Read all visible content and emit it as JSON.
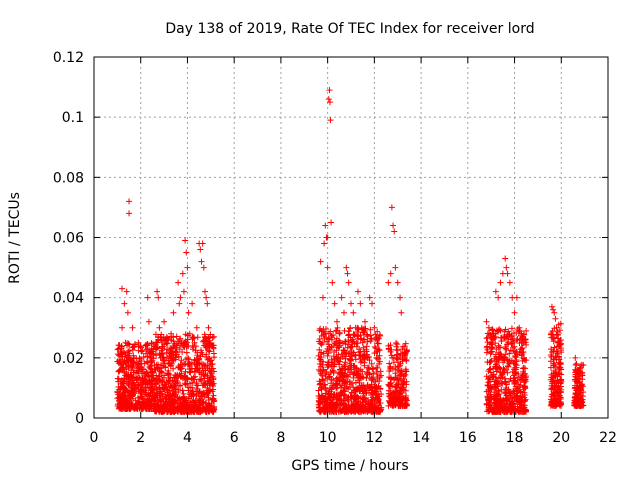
{
  "chart_data": {
    "type": "scatter",
    "title": "Day 138 of 2019, Rate Of TEC Index for receiver lord",
    "xlabel": "GPS time / hours",
    "ylabel": "ROTI / TECUs",
    "xlim": [
      0,
      22
    ],
    "ylim": [
      0,
      0.12
    ],
    "xticks": [
      0,
      2,
      4,
      6,
      8,
      10,
      12,
      14,
      16,
      18,
      20,
      22
    ],
    "xtick_labels": [
      "0",
      "2",
      "4",
      "6",
      "8",
      "10",
      "12",
      "14",
      "16",
      "18",
      "20",
      "22"
    ],
    "yticks": [
      0,
      0.02,
      0.04,
      0.06,
      0.08,
      0.1,
      0.12
    ],
    "ytick_labels": [
      "0",
      "0.02",
      "0.04",
      "0.06",
      "0.08",
      "0.1",
      "0.12"
    ],
    "grid": true,
    "marker": "+",
    "color": "#ff0000",
    "series": [
      {
        "name": "ROTI",
        "points": [
          [
            1.1,
            0.008
          ],
          [
            1.15,
            0.012
          ],
          [
            1.2,
            0.03
          ],
          [
            1.2,
            0.043
          ],
          [
            1.25,
            0.022
          ],
          [
            1.3,
            0.038
          ],
          [
            1.3,
            0.015
          ],
          [
            1.35,
            0.025
          ],
          [
            1.4,
            0.042
          ],
          [
            1.4,
            0.018
          ],
          [
            1.45,
            0.035
          ],
          [
            1.5,
            0.072
          ],
          [
            1.5,
            0.068
          ],
          [
            1.5,
            0.02
          ],
          [
            1.55,
            0.012
          ],
          [
            1.6,
            0.01
          ],
          [
            1.65,
            0.03
          ],
          [
            1.7,
            0.02
          ],
          [
            1.8,
            0.015
          ],
          [
            1.9,
            0.025
          ],
          [
            2.0,
            0.018
          ],
          [
            2.1,
            0.012
          ],
          [
            2.2,
            0.01
          ],
          [
            2.3,
            0.04
          ],
          [
            2.35,
            0.032
          ],
          [
            2.4,
            0.02
          ],
          [
            2.5,
            0.015
          ],
          [
            2.6,
            0.01
          ],
          [
            2.7,
            0.042
          ],
          [
            2.75,
            0.04
          ],
          [
            2.8,
            0.03
          ],
          [
            2.85,
            0.02
          ],
          [
            2.9,
            0.012
          ],
          [
            3.0,
            0.032
          ],
          [
            3.1,
            0.025
          ],
          [
            3.2,
            0.018
          ],
          [
            3.3,
            0.028
          ],
          [
            3.4,
            0.035
          ],
          [
            3.5,
            0.022
          ],
          [
            3.6,
            0.045
          ],
          [
            3.65,
            0.038
          ],
          [
            3.7,
            0.04
          ],
          [
            3.8,
            0.048
          ],
          [
            3.85,
            0.042
          ],
          [
            3.9,
            0.059
          ],
          [
            3.95,
            0.055
          ],
          [
            4.0,
            0.05
          ],
          [
            4.05,
            0.035
          ],
          [
            4.1,
            0.028
          ],
          [
            4.2,
            0.038
          ],
          [
            4.3,
            0.025
          ],
          [
            4.4,
            0.03
          ],
          [
            4.5,
            0.058
          ],
          [
            4.55,
            0.056
          ],
          [
            4.6,
            0.052
          ],
          [
            4.65,
            0.058
          ],
          [
            4.7,
            0.05
          ],
          [
            4.75,
            0.042
          ],
          [
            4.8,
            0.04
          ],
          [
            4.85,
            0.038
          ],
          [
            4.9,
            0.03
          ],
          [
            4.95,
            0.025
          ],
          [
            5.0,
            0.018
          ],
          [
            5.05,
            0.012
          ],
          [
            9.7,
            0.052
          ],
          [
            9.8,
            0.04
          ],
          [
            9.85,
            0.058
          ],
          [
            9.9,
            0.064
          ],
          [
            9.95,
            0.06
          ],
          [
            10.0,
            0.05
          ],
          [
            10.0,
            0.06
          ],
          [
            10.05,
            0.106
          ],
          [
            10.08,
            0.109
          ],
          [
            10.1,
            0.105
          ],
          [
            10.12,
            0.099
          ],
          [
            10.15,
            0.065
          ],
          [
            10.2,
            0.045
          ],
          [
            10.3,
            0.038
          ],
          [
            10.4,
            0.032
          ],
          [
            10.5,
            0.028
          ],
          [
            10.6,
            0.04
          ],
          [
            10.7,
            0.035
          ],
          [
            10.8,
            0.05
          ],
          [
            10.85,
            0.048
          ],
          [
            10.9,
            0.045
          ],
          [
            11.0,
            0.038
          ],
          [
            11.1,
            0.035
          ],
          [
            11.2,
            0.03
          ],
          [
            11.3,
            0.042
          ],
          [
            11.4,
            0.038
          ],
          [
            11.5,
            0.025
          ],
          [
            11.6,
            0.032
          ],
          [
            11.7,
            0.02
          ],
          [
            11.8,
            0.04
          ],
          [
            11.9,
            0.038
          ],
          [
            12.0,
            0.03
          ],
          [
            12.1,
            0.022
          ],
          [
            12.2,
            0.018
          ],
          [
            12.6,
            0.045
          ],
          [
            12.7,
            0.048
          ],
          [
            12.75,
            0.07
          ],
          [
            12.8,
            0.064
          ],
          [
            12.85,
            0.062
          ],
          [
            12.9,
            0.05
          ],
          [
            13.0,
            0.045
          ],
          [
            13.1,
            0.04
          ],
          [
            13.15,
            0.035
          ],
          [
            13.2,
            0.02
          ],
          [
            13.3,
            0.012
          ],
          [
            16.8,
            0.032
          ],
          [
            16.9,
            0.03
          ],
          [
            17.0,
            0.025
          ],
          [
            17.1,
            0.028
          ],
          [
            17.2,
            0.042
          ],
          [
            17.3,
            0.04
          ],
          [
            17.4,
            0.045
          ],
          [
            17.5,
            0.048
          ],
          [
            17.6,
            0.053
          ],
          [
            17.65,
            0.05
          ],
          [
            17.7,
            0.048
          ],
          [
            17.8,
            0.045
          ],
          [
            17.9,
            0.04
          ],
          [
            18.0,
            0.035
          ],
          [
            18.1,
            0.04
          ],
          [
            18.2,
            0.03
          ],
          [
            18.3,
            0.025
          ],
          [
            18.4,
            0.02
          ],
          [
            19.6,
            0.037
          ],
          [
            19.65,
            0.036
          ],
          [
            19.7,
            0.035
          ],
          [
            19.75,
            0.033
          ],
          [
            19.8,
            0.03
          ],
          [
            19.85,
            0.025
          ],
          [
            19.9,
            0.02
          ],
          [
            19.95,
            0.018
          ],
          [
            20.0,
            0.012
          ],
          [
            20.6,
            0.02
          ],
          [
            20.65,
            0.018
          ],
          [
            20.7,
            0.016
          ],
          [
            20.75,
            0.015
          ],
          [
            20.8,
            0.012
          ],
          [
            20.85,
            0.01
          ]
        ]
      }
    ],
    "dense_clusters": [
      {
        "x_start": 1.0,
        "x_end": 2.6,
        "y_min": 0.003,
        "y_max": 0.025,
        "count": 520
      },
      {
        "x_start": 2.6,
        "x_end": 5.15,
        "y_min": 0.002,
        "y_max": 0.028,
        "count": 800
      },
      {
        "x_start": 9.6,
        "x_end": 12.3,
        "y_min": 0.002,
        "y_max": 0.03,
        "count": 820
      },
      {
        "x_start": 12.6,
        "x_end": 13.4,
        "y_min": 0.004,
        "y_max": 0.025,
        "count": 220
      },
      {
        "x_start": 16.8,
        "x_end": 18.5,
        "y_min": 0.002,
        "y_max": 0.03,
        "count": 560
      },
      {
        "x_start": 19.55,
        "x_end": 20.0,
        "y_min": 0.004,
        "y_max": 0.032,
        "count": 180
      },
      {
        "x_start": 20.55,
        "x_end": 20.95,
        "y_min": 0.004,
        "y_max": 0.018,
        "count": 140
      }
    ]
  }
}
